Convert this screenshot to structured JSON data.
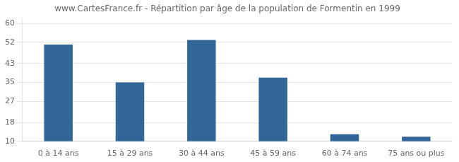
{
  "chart_data": {
    "type": "bar",
    "title": "www.CartesFrance.fr - Répartition par âge de la population de Formentin en 1999",
    "categories": [
      "0 à 14 ans",
      "15 à 29 ans",
      "30 à 44 ans",
      "45 à 59 ans",
      "60 à 74 ans",
      "75 ans ou plus"
    ],
    "values": [
      51,
      35,
      53,
      37,
      13,
      12
    ],
    "color": "#336699",
    "ylim": [
      10,
      62
    ],
    "yticks": [
      10,
      18,
      27,
      35,
      43,
      52,
      60
    ],
    "grid": true
  }
}
